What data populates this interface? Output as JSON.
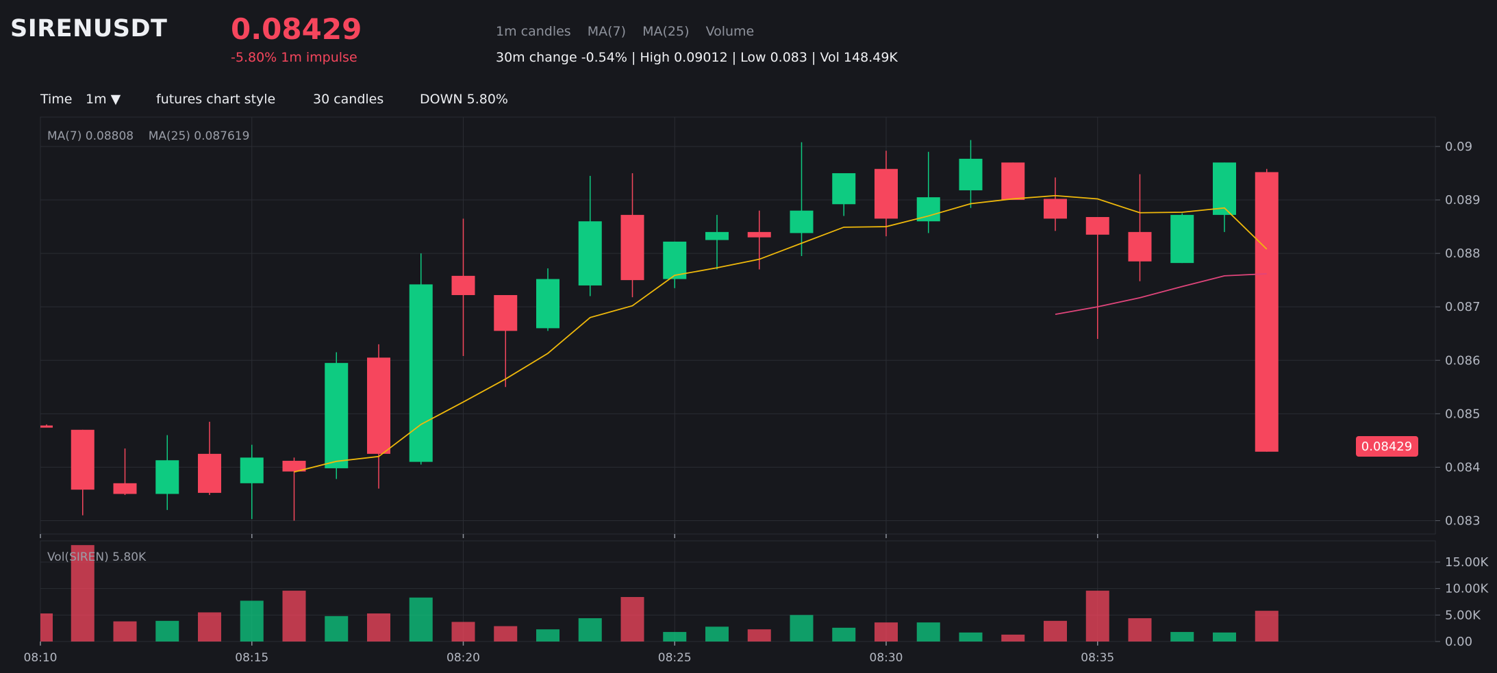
{
  "header": {
    "symbol": "SIRENUSDT",
    "price": "0.08429",
    "impulse": "-5.80% 1m impulse",
    "tags": [
      "1m candles",
      "MA(7)",
      "MA(25)",
      "Volume"
    ],
    "stats": "30m change -0.54% | High 0.09012 | Low 0.083 | Vol 148.49K"
  },
  "toolbar": {
    "time_label": "Time",
    "interval": "1m ▼",
    "style": "futures chart style",
    "candles": "30 candles",
    "direction": "DOWN 5.80%"
  },
  "colors": {
    "background": "#17181d",
    "up": "#0ecb81",
    "down": "#f6465d",
    "ma7": "#f0b90b",
    "ma25": "#e0457b",
    "grid": "#2a2c33"
  },
  "chart_data": {
    "type": "candlestick",
    "price_legend": "MA(7) 0.08808    MA(25) 0.087619",
    "volume_legend": "Vol(SIREN) 5.80K",
    "last_price_label": "0.08429",
    "price_ticks": [
      "0.09",
      "0.089",
      "0.088",
      "0.087",
      "0.086",
      "0.085",
      "0.084",
      "0.083"
    ],
    "volume_ticks": [
      "15.00K",
      "10.00K",
      "5.00K",
      "0.00"
    ],
    "time_ticks": [
      "08:10",
      "08:15",
      "08:20",
      "08:25",
      "08:30",
      "08:35"
    ],
    "price_range": [
      0.08275,
      0.09055
    ],
    "volume_range": [
      0,
      19000
    ],
    "grid": true,
    "candles": [
      {
        "t": "08:10",
        "o": 0.08478,
        "h": 0.0848,
        "l": 0.08476,
        "c": 0.08474,
        "v": 5300
      },
      {
        "t": "08:11",
        "o": 0.0847,
        "h": 0.0847,
        "l": 0.0831,
        "c": 0.08358,
        "v": 18200
      },
      {
        "t": "08:12",
        "o": 0.0837,
        "h": 0.08435,
        "l": 0.08348,
        "c": 0.0835,
        "v": 3800
      },
      {
        "t": "08:13",
        "o": 0.0835,
        "h": 0.0846,
        "l": 0.0832,
        "c": 0.08413,
        "v": 3900
      },
      {
        "t": "08:14",
        "o": 0.08425,
        "h": 0.08485,
        "l": 0.08348,
        "c": 0.08352,
        "v": 5500
      },
      {
        "t": "08:15",
        "o": 0.0837,
        "h": 0.08442,
        "l": 0.08303,
        "c": 0.08418,
        "v": 7700
      },
      {
        "t": "08:16",
        "o": 0.08412,
        "h": 0.08418,
        "l": 0.083,
        "c": 0.08392,
        "v": 9600
      },
      {
        "t": "08:17",
        "o": 0.08398,
        "h": 0.08615,
        "l": 0.08378,
        "c": 0.08595,
        "v": 4800
      },
      {
        "t": "08:18",
        "o": 0.08605,
        "h": 0.0863,
        "l": 0.0836,
        "c": 0.08425,
        "v": 5300
      },
      {
        "t": "08:19",
        "o": 0.0841,
        "h": 0.088,
        "l": 0.08405,
        "c": 0.08742,
        "v": 8300
      },
      {
        "t": "08:20",
        "o": 0.08758,
        "h": 0.08865,
        "l": 0.08608,
        "c": 0.08722,
        "v": 3700
      },
      {
        "t": "08:21",
        "o": 0.08722,
        "h": 0.08722,
        "l": 0.0855,
        "c": 0.08655,
        "v": 2900
      },
      {
        "t": "08:22",
        "o": 0.0866,
        "h": 0.08772,
        "l": 0.08655,
        "c": 0.08752,
        "v": 2300
      },
      {
        "t": "08:23",
        "o": 0.0874,
        "h": 0.08945,
        "l": 0.0872,
        "c": 0.0886,
        "v": 4400
      },
      {
        "t": "08:24",
        "o": 0.08872,
        "h": 0.0895,
        "l": 0.08718,
        "c": 0.0875,
        "v": 8400
      },
      {
        "t": "08:25",
        "o": 0.08752,
        "h": 0.08822,
        "l": 0.08735,
        "c": 0.08822,
        "v": 1800
      },
      {
        "t": "08:26",
        "o": 0.08825,
        "h": 0.08872,
        "l": 0.0877,
        "c": 0.0884,
        "v": 2800
      },
      {
        "t": "08:27",
        "o": 0.0884,
        "h": 0.0888,
        "l": 0.0877,
        "c": 0.0883,
        "v": 2300
      },
      {
        "t": "08:28",
        "o": 0.08838,
        "h": 0.09008,
        "l": 0.08795,
        "c": 0.0888,
        "v": 5000
      },
      {
        "t": "08:29",
        "o": 0.08892,
        "h": 0.0895,
        "l": 0.0887,
        "c": 0.0895,
        "v": 2600
      },
      {
        "t": "08:30",
        "o": 0.08958,
        "h": 0.08992,
        "l": 0.08832,
        "c": 0.08865,
        "v": 3600
      },
      {
        "t": "08:31",
        "o": 0.0886,
        "h": 0.0899,
        "l": 0.08838,
        "c": 0.08905,
        "v": 3600
      },
      {
        "t": "08:32",
        "o": 0.08918,
        "h": 0.09012,
        "l": 0.08885,
        "c": 0.08977,
        "v": 1700
      },
      {
        "t": "08:33",
        "o": 0.0897,
        "h": 0.0897,
        "l": 0.089,
        "c": 0.089,
        "v": 1300
      },
      {
        "t": "08:34",
        "o": 0.08902,
        "h": 0.08942,
        "l": 0.08842,
        "c": 0.08865,
        "v": 3900
      },
      {
        "t": "08:35",
        "o": 0.08868,
        "h": 0.08868,
        "l": 0.0864,
        "c": 0.08835,
        "v": 9600
      },
      {
        "t": "08:36",
        "o": 0.0884,
        "h": 0.08948,
        "l": 0.08748,
        "c": 0.08785,
        "v": 4400
      },
      {
        "t": "08:37",
        "o": 0.08782,
        "h": 0.08875,
        "l": 0.08782,
        "c": 0.08872,
        "v": 1800
      },
      {
        "t": "08:38",
        "o": 0.08872,
        "h": 0.0897,
        "l": 0.0884,
        "c": 0.0897,
        "v": 1700
      },
      {
        "t": "08:39",
        "o": 0.08952,
        "h": 0.08958,
        "l": 0.08429,
        "c": 0.08429,
        "v": 5800
      }
    ],
    "ma7": [
      null,
      null,
      null,
      null,
      null,
      null,
      0.08391,
      0.08411,
      0.0842,
      0.0848,
      0.08522,
      0.08565,
      0.08613,
      0.0868,
      0.08702,
      0.08759,
      0.08773,
      0.08789,
      0.08819,
      0.08849,
      0.0885,
      0.0887,
      0.08893,
      0.08902,
      0.08908,
      0.08902,
      0.08876,
      0.08877,
      0.08885,
      0.08808
    ],
    "ma25": [
      null,
      null,
      null,
      null,
      null,
      null,
      null,
      null,
      null,
      null,
      null,
      null,
      null,
      null,
      null,
      null,
      null,
      null,
      null,
      null,
      null,
      null,
      null,
      null,
      0.08686,
      0.087,
      0.08717,
      0.08738,
      0.08758,
      0.087619
    ]
  }
}
